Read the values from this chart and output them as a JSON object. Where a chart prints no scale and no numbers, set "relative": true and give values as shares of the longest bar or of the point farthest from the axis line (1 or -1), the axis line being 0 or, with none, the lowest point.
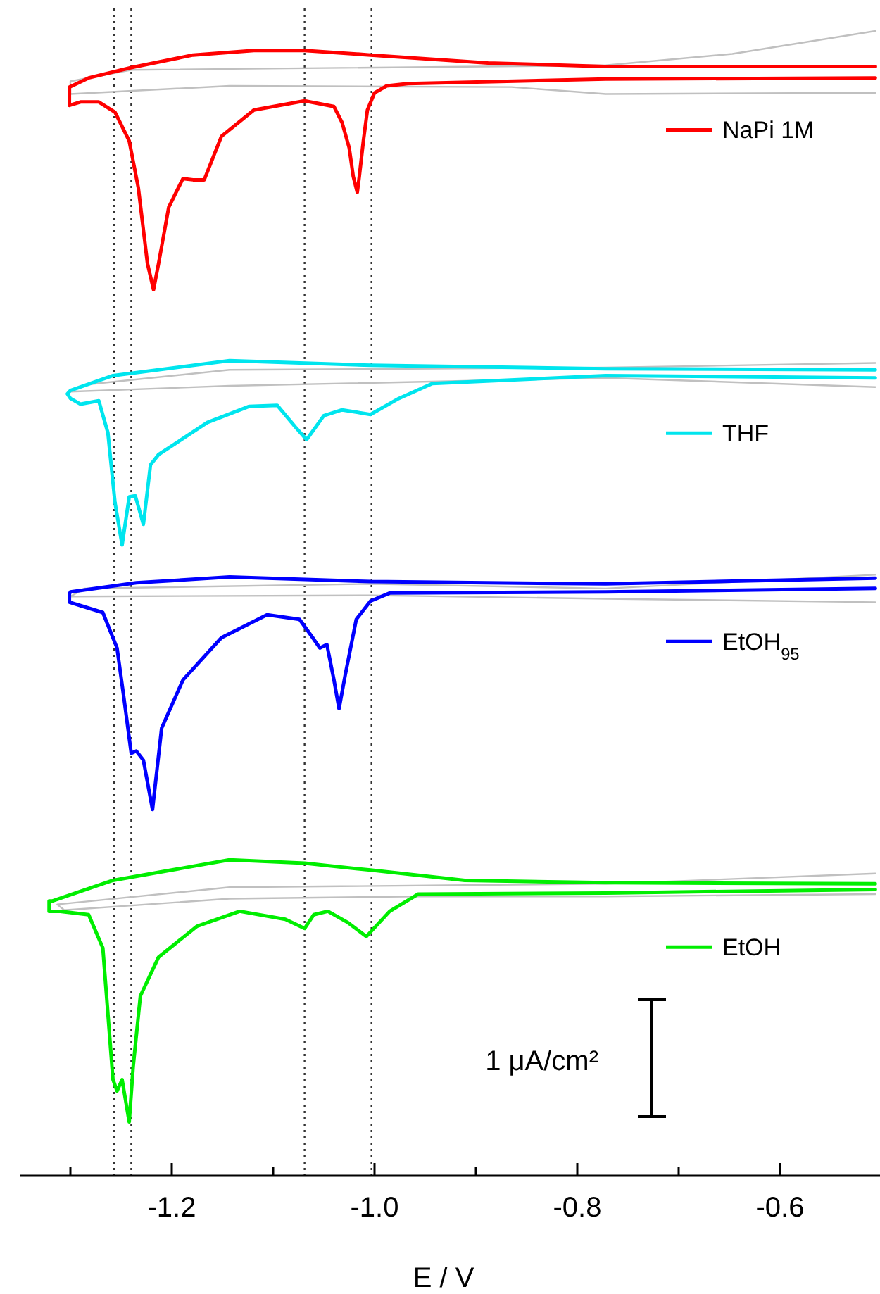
{
  "chart_data": {
    "type": "line",
    "relative": true,
    "xlabel": "E / V",
    "xlim": [
      -1.35,
      -0.5
    ],
    "xticks": [
      {
        "value": -1.3,
        "label": null
      },
      -1.2,
      {
        "value": -1.1,
        "label": null
      },
      {
        "value": -1,
        "label": "-1.0"
      },
      {
        "value": -0.9,
        "label": null
      },
      -0.8,
      {
        "value": -0.7,
        "label": null
      },
      -0.6,
      {
        "value": -0.5,
        "label": null
      }
    ],
    "legend": "right",
    "series": [
      {
        "color": "#c0c0c0",
        "x": [
          -0.506,
          -0.772,
          -0.865,
          -1.143,
          -1.3,
          -1.3,
          -1.24,
          -0.772,
          -0.647,
          -0.506
        ],
        "values": [
          0.946,
          0.945,
          0.951,
          0.952,
          0.945,
          0.956,
          0.966,
          0.97,
          0.98,
          1.0
        ]
      },
      {
        "name": "NaPi 1M",
        "color": "#ff0000",
        "x": [
          -0.506,
          -0.772,
          -0.967,
          -0.988,
          -1.0,
          -1.007,
          -1.011,
          -1.015,
          -1.017,
          -1.021,
          -1.025,
          -1.032,
          -1.04,
          -1.069,
          -1.119,
          -1.151,
          -1.168,
          -1.179,
          -1.189,
          -1.203,
          -1.213,
          -1.218,
          -1.224,
          -1.233,
          -1.242,
          -1.256,
          -1.272,
          -1.29,
          -1.301,
          -1.301,
          -1.282,
          -1.24,
          -1.179,
          -1.119,
          -1.069,
          -1.004,
          -0.888,
          -0.772,
          -0.506
        ],
        "values": [
          0.959,
          0.958,
          0.954,
          0.952,
          0.946,
          0.931,
          0.904,
          0.873,
          0.859,
          0.873,
          0.898,
          0.92,
          0.934,
          0.939,
          0.931,
          0.908,
          0.87,
          0.87,
          0.871,
          0.846,
          0.797,
          0.774,
          0.797,
          0.863,
          0.904,
          0.929,
          0.938,
          0.938,
          0.935,
          0.951,
          0.959,
          0.968,
          0.979,
          0.983,
          0.983,
          0.979,
          0.972,
          0.969,
          0.969
        ]
      },
      {
        "color": "#c0c0c0",
        "x": [
          -0.506,
          -0.772,
          -1.143,
          -1.3,
          -1.286,
          -1.143,
          -0.772,
          -0.506
        ],
        "values": [
          0.689,
          0.697,
          0.69,
          0.685,
          0.691,
          0.704,
          0.706,
          0.71
        ]
      },
      {
        "name": "THF",
        "color": "#00e5ee",
        "x": [
          -0.506,
          -0.772,
          -0.943,
          -0.976,
          -1.004,
          -1.032,
          -1.05,
          -1.067,
          -1.078,
          -1.096,
          -1.124,
          -1.165,
          -1.213,
          -1.221,
          -1.228,
          -1.236,
          -1.242,
          -1.249,
          -1.256,
          -1.263,
          -1.272,
          -1.29,
          -1.3,
          -1.303,
          -1.3,
          -1.258,
          -1.143,
          -1.004,
          -0.772,
          -0.506
        ],
        "values": [
          0.697,
          0.699,
          0.692,
          0.679,
          0.665,
          0.669,
          0.664,
          0.643,
          0.654,
          0.673,
          0.672,
          0.658,
          0.63,
          0.621,
          0.569,
          0.594,
          0.593,
          0.551,
          0.588,
          0.649,
          0.677,
          0.674,
          0.679,
          0.683,
          0.686,
          0.699,
          0.712,
          0.708,
          0.705,
          0.704
        ]
      },
      {
        "color": "#c0c0c0",
        "x": [
          -0.506,
          -0.772,
          -1.004,
          -1.3,
          -1.286,
          -1.004,
          -0.772,
          -0.506
        ],
        "values": [
          0.501,
          0.504,
          0.507,
          0.506,
          0.513,
          0.517,
          0.513,
          0.525
        ]
      },
      {
        "name": "EtOH$_{95}$",
        "color": "#0000ff",
        "x": [
          -0.506,
          -0.772,
          -0.985,
          -1.004,
          -1.018,
          -1.029,
          -1.035,
          -1.04,
          -1.047,
          -1.054,
          -1.061,
          -1.074,
          -1.106,
          -1.151,
          -1.189,
          -1.21,
          -1.219,
          -1.228,
          -1.235,
          -1.24,
          -1.247,
          -1.254,
          -1.268,
          -1.29,
          -1.301,
          -1.301,
          -1.3,
          -1.235,
          -1.143,
          -1.004,
          -0.772,
          -0.506
        ],
        "values": [
          0.513,
          0.51,
          0.509,
          0.502,
          0.486,
          0.437,
          0.408,
          0.433,
          0.464,
          0.461,
          0.47,
          0.486,
          0.49,
          0.47,
          0.433,
          0.391,
          0.32,
          0.363,
          0.371,
          0.369,
          0.416,
          0.461,
          0.492,
          0.498,
          0.501,
          0.508,
          0.51,
          0.518,
          0.523,
          0.519,
          0.517,
          0.522
        ]
      },
      {
        "color": "#c0c0c0",
        "x": [
          -0.506,
          -0.772,
          -0.957,
          -1.143,
          -1.306,
          -1.313,
          -1.143,
          -0.772,
          -0.506
        ],
        "values": [
          0.246,
          0.244,
          0.244,
          0.242,
          0.232,
          0.237,
          0.252,
          0.255,
          0.264
        ]
      },
      {
        "name": "EtOH",
        "color": "#00ee00",
        "x": [
          -0.506,
          -0.772,
          -0.957,
          -0.985,
          -1.008,
          -1.026,
          -1.046,
          -1.06,
          -1.069,
          -1.088,
          -1.133,
          -1.175,
          -1.213,
          -1.231,
          -1.238,
          -1.242,
          -1.249,
          -1.254,
          -1.258,
          -1.268,
          -1.282,
          -1.31,
          -1.321,
          -1.321,
          -1.318,
          -1.258,
          -1.143,
          -1.069,
          -1.004,
          -0.911,
          -0.772,
          -0.506
        ],
        "values": [
          0.25,
          0.247,
          0.246,
          0.231,
          0.209,
          0.221,
          0.231,
          0.228,
          0.216,
          0.224,
          0.231,
          0.218,
          0.191,
          0.157,
          0.096,
          0.047,
          0.084,
          0.074,
          0.084,
          0.199,
          0.228,
          0.231,
          0.231,
          0.24,
          0.24,
          0.258,
          0.276,
          0.273,
          0.267,
          0.258,
          0.256,
          0.255
        ]
      }
    ],
    "ref_lines": [
      {
        "axis": "x",
        "value": -1.257,
        "line_style": "dotted"
      },
      {
        "axis": "x",
        "value": -1.24,
        "line_style": "dotted"
      },
      {
        "axis": "x",
        "value": -1.069,
        "line_style": "dotted"
      },
      {
        "axis": "x",
        "value": -1.003,
        "line_style": "dotted"
      }
    ],
    "annotations": [
      "1 μA/cm²"
    ]
  }
}
